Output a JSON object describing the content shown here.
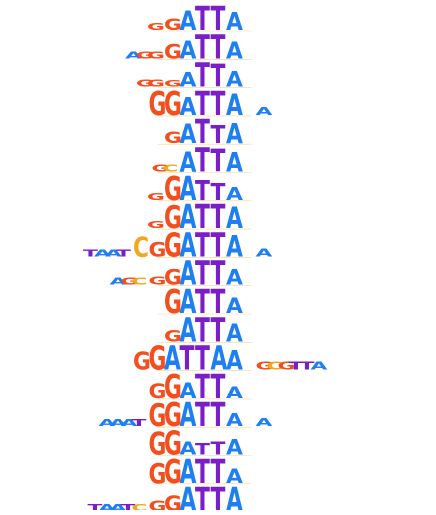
{
  "colors": {
    "G": "#f24e1e",
    "A": "#1e7ff2",
    "T": "#7a1ec8",
    "C": "#f2a81e",
    "faint": "#9a9a9a"
  },
  "motifs": [
    {
      "core": "GATTA",
      "heights": [
        0.45,
        0.75,
        0.95,
        0.95,
        0.7
      ],
      "flank_left": "G",
      "flank_right": ""
    },
    {
      "core": "GATTA",
      "heights": [
        0.55,
        0.7,
        0.95,
        0.95,
        0.65
      ],
      "flank_left": "AGG",
      "flank_right": ""
    },
    {
      "core": "GATTA",
      "heights": [
        0.25,
        0.55,
        0.95,
        0.9,
        0.6
      ],
      "flank_left": "GG",
      "flank_right": ""
    },
    {
      "core": "GGATTA",
      "heights": [
        0.95,
        0.95,
        0.7,
        0.95,
        0.95,
        0.85
      ],
      "flank_left": "",
      "flank_right": "A"
    },
    {
      "core": "GATTA",
      "heights": [
        0.45,
        0.75,
        0.95,
        0.7,
        0.8
      ],
      "flank_left": "",
      "flank_right": ""
    },
    {
      "core": "ATTA",
      "heights": [
        0.8,
        0.95,
        0.9,
        0.75
      ],
      "flank_left": "GC",
      "flank_right": ""
    },
    {
      "core": "GATTA",
      "heights": [
        0.95,
        0.95,
        0.8,
        0.65,
        0.5
      ],
      "flank_left": "G",
      "flank_right": ""
    },
    {
      "core": "GATTA",
      "heights": [
        0.9,
        0.95,
        0.95,
        0.95,
        0.85
      ],
      "flank_left": "G",
      "flank_right": ""
    },
    {
      "core": "CGGATTA",
      "heights": [
        0.8,
        0.55,
        0.95,
        0.95,
        0.95,
        0.95,
        0.85
      ],
      "flank_left": "TAAT",
      "flank_right": "A"
    },
    {
      "core": "GGATTA",
      "heights": [
        0.3,
        0.6,
        0.95,
        0.95,
        0.95,
        0.6
      ],
      "flank_left": "AGC",
      "flank_right": ""
    },
    {
      "core": "GATTA",
      "heights": [
        0.95,
        0.95,
        0.95,
        0.95,
        0.6
      ],
      "flank_left": "",
      "flank_right": ""
    },
    {
      "core": "GATTA",
      "heights": [
        0.45,
        0.95,
        0.95,
        0.95,
        0.7
      ],
      "flank_left": "",
      "flank_right": ""
    },
    {
      "core": "GGATTAA",
      "heights": [
        0.7,
        0.95,
        0.95,
        0.95,
        0.95,
        0.95,
        0.75
      ],
      "flank_left": "",
      "flank_right": "GCGTTA"
    },
    {
      "core": "GGATTA",
      "heights": [
        0.55,
        0.95,
        0.6,
        0.95,
        0.95,
        0.45
      ],
      "flank_left": "",
      "flank_right": ""
    },
    {
      "core": "GGATTA",
      "heights": [
        0.9,
        0.95,
        0.95,
        0.95,
        0.95,
        0.5
      ],
      "flank_left": "AAAT",
      "flank_right": "A"
    },
    {
      "core": "GGATTA",
      "heights": [
        0.9,
        0.95,
        0.5,
        0.45,
        0.5,
        0.6
      ],
      "flank_left": "",
      "flank_right": ""
    },
    {
      "core": "GGATTA",
      "heights": [
        0.8,
        0.95,
        0.95,
        0.95,
        0.95,
        0.55
      ],
      "flank_left": "",
      "flank_right": ""
    },
    {
      "core": "GGATTA",
      "heights": [
        0.4,
        0.6,
        0.95,
        0.95,
        0.95,
        0.95
      ],
      "flank_left": "TAATC",
      "flank_right": ""
    }
  ]
}
